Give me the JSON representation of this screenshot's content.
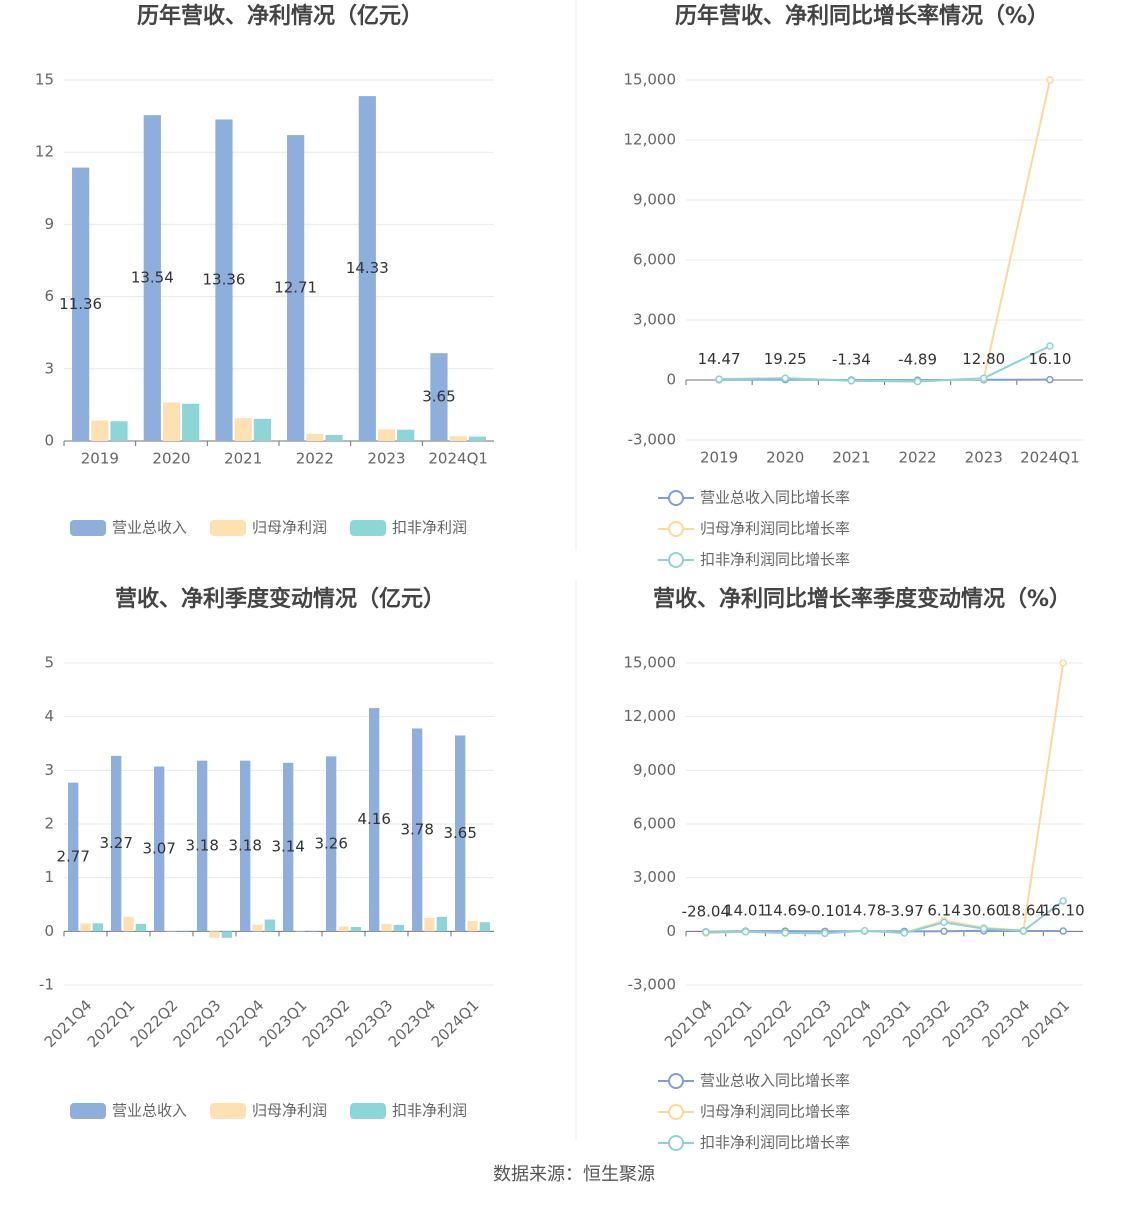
{
  "charts": [
    {
      "type": "bar",
      "title": "历年营收、净利情况（亿元）",
      "categories": [
        "2019",
        "2020",
        "2021",
        "2022",
        "2023",
        "2024Q1"
      ],
      "ylim": [
        0,
        15
      ],
      "yticks": [
        0,
        3,
        6,
        9,
        12,
        15
      ],
      "grid": true,
      "series": [
        {
          "name": "营业总收入",
          "color": "#8eaedc",
          "values": [
            11.36,
            13.54,
            13.36,
            12.71,
            14.33,
            3.65
          ],
          "value_labels": [
            "11.36",
            "13.54",
            "13.36",
            "12.71",
            "14.33",
            "3.65"
          ]
        },
        {
          "name": "归母净利润",
          "color": "#ffe0b0",
          "values": [
            0.85,
            1.6,
            0.95,
            0.3,
            0.48,
            0.2
          ]
        },
        {
          "name": "扣非净利润",
          "color": "#8dd6d8",
          "values": [
            0.82,
            1.55,
            0.92,
            0.25,
            0.47,
            0.18
          ]
        }
      ]
    },
    {
      "type": "line",
      "title": "历年营收、净利同比增长率情况（%）",
      "categories": [
        "2019",
        "2020",
        "2021",
        "2022",
        "2023",
        "2024Q1"
      ],
      "ylim": [
        -3000,
        15000
      ],
      "yticks": [
        {
          "value": -3000,
          "label": "-3,000"
        },
        0,
        {
          "value": 3000,
          "label": "3,000"
        },
        {
          "value": 6000,
          "label": "6,000"
        },
        {
          "value": 9000,
          "label": "9,000"
        },
        {
          "value": 12000,
          "label": "12,000"
        },
        {
          "value": 15000,
          "label": "15,000"
        }
      ],
      "grid": true,
      "series": [
        {
          "name": "营业总收入同比增长率",
          "color": "#7f9dd6",
          "values": [
            14.47,
            19.25,
            -1.34,
            -4.89,
            12.8,
            16.1
          ],
          "value_labels": [
            "14.47",
            "19.25",
            "-1.34",
            "-4.89",
            "12.80",
            "16.10"
          ]
        },
        {
          "name": "归母净利润同比增长率",
          "color": "#fdd89a",
          "values": [
            50,
            90,
            -40,
            -70,
            60,
            15000
          ]
        },
        {
          "name": "扣非净利润同比增长率",
          "color": "#8dd3d6",
          "values": [
            40,
            85,
            -40,
            -75,
            90,
            1700
          ]
        }
      ]
    },
    {
      "type": "bar",
      "title": "营收、净利季度变动情况（亿元）",
      "categories": [
        "2021Q4",
        "2022Q1",
        "2022Q2",
        "2022Q3",
        "2022Q4",
        "2023Q1",
        "2023Q2",
        "2023Q3",
        "2023Q4",
        "2024Q1"
      ],
      "ylim": [
        -1,
        5
      ],
      "yticks": [
        -1,
        0,
        1,
        2,
        3,
        4,
        5
      ],
      "grid": true,
      "series": [
        {
          "name": "营业总收入",
          "color": "#8eaedc",
          "values": [
            2.77,
            3.27,
            3.07,
            3.18,
            3.18,
            3.14,
            3.26,
            4.16,
            3.78,
            3.65
          ],
          "value_labels": [
            "2.77",
            "3.27",
            "3.07",
            "3.18",
            "3.18",
            "3.14",
            "3.26",
            "4.16",
            "3.78",
            "3.65"
          ]
        },
        {
          "name": "归母净利润",
          "color": "#ffe0b0",
          "values": [
            0.15,
            0.27,
            0.02,
            -0.12,
            0.12,
            0.01,
            0.09,
            0.14,
            0.25,
            0.19
          ]
        },
        {
          "name": "扣非净利润",
          "color": "#8dd6d8",
          "values": [
            0.15,
            0.14,
            0.01,
            -0.12,
            0.22,
            0.01,
            0.08,
            0.12,
            0.27,
            0.17
          ]
        }
      ]
    },
    {
      "type": "line",
      "title": "营收、净利同比增长率季度变动情况（%）",
      "categories": [
        "2021Q4",
        "2022Q1",
        "2022Q2",
        "2022Q3",
        "2022Q4",
        "2023Q1",
        "2023Q2",
        "2023Q3",
        "2023Q4",
        "2024Q1"
      ],
      "ylim": [
        -3000,
        15000
      ],
      "yticks": [
        {
          "value": -3000,
          "label": "-3,000"
        },
        0,
        {
          "value": 3000,
          "label": "3,000"
        },
        {
          "value": 6000,
          "label": "6,000"
        },
        {
          "value": 9000,
          "label": "9,000"
        },
        {
          "value": 12000,
          "label": "12,000"
        },
        {
          "value": 15000,
          "label": "15,000"
        }
      ],
      "grid": true,
      "series": [
        {
          "name": "营业总收入同比增长率",
          "color": "#7f9dd6",
          "values": [
            -28.04,
            14.01,
            14.69,
            -0.1,
            14.78,
            -3.97,
            6.14,
            30.6,
            18.64,
            16.1
          ],
          "value_labels": [
            "-28.04",
            "14.01",
            "14.69",
            "-0.10",
            "14.78",
            "-3.97",
            "6.14",
            "30.60",
            "18.64",
            "16.10"
          ]
        },
        {
          "name": "归母净利润同比增长率",
          "color": "#fdd89a",
          "values": [
            -100,
            -30,
            -95,
            -120,
            30,
            -90,
            600,
            200,
            50,
            15000
          ]
        },
        {
          "name": "扣非净利润同比增长率",
          "color": "#8dd3d6",
          "values": [
            -50,
            -20,
            -90,
            -110,
            40,
            -95,
            500,
            150,
            30,
            1700
          ]
        }
      ]
    }
  ],
  "footer": "数据来源：恒生聚源"
}
